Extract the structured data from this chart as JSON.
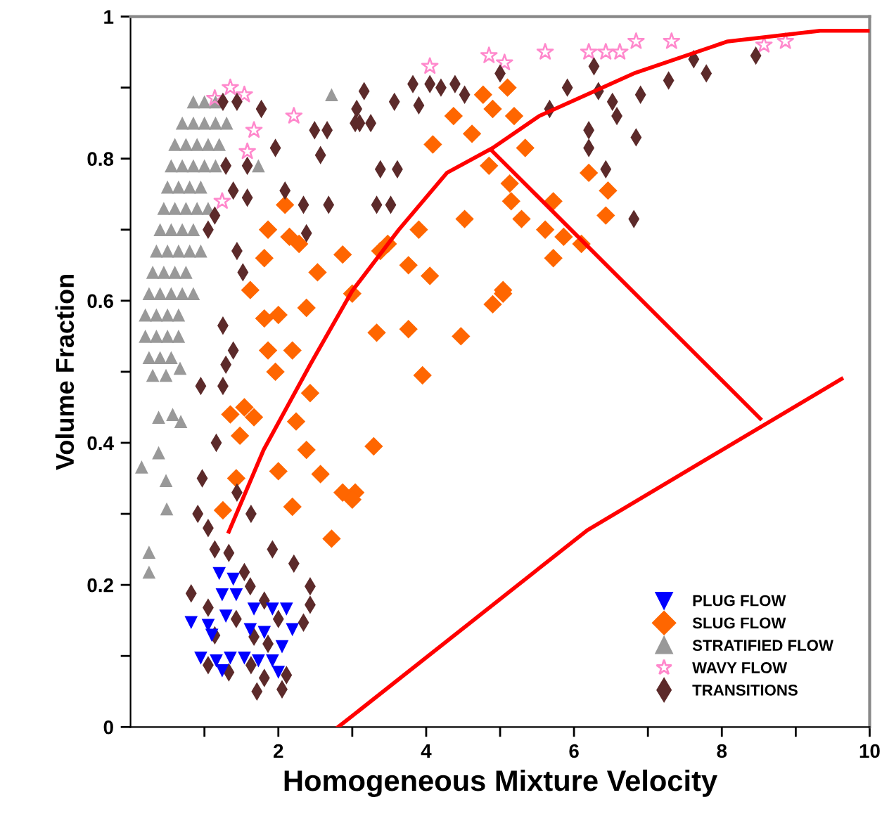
{
  "chart_data": {
    "type": "scatter",
    "xlabel": "Homogeneous Mixture Velocity",
    "ylabel": "Volume Fraction",
    "xlim": [
      0,
      10
    ],
    "ylim": [
      0,
      1
    ],
    "xticks": [
      {
        "value": 1,
        "label": null
      },
      2,
      {
        "value": 3,
        "label": null
      },
      4,
      {
        "value": 5,
        "label": null
      },
      6,
      {
        "value": 7,
        "label": null
      },
      8,
      {
        "value": 9,
        "label": null
      },
      10
    ],
    "yticks": [
      0,
      {
        "value": 0.1,
        "label": null
      },
      0.2,
      {
        "value": 0.3,
        "label": null
      },
      0.4,
      {
        "value": 0.5,
        "label": null
      },
      0.6,
      {
        "value": 0.7,
        "label": null
      },
      0.8,
      {
        "value": 0.9,
        "label": null
      },
      1
    ],
    "legend": "bottom right",
    "series": [
      {
        "name": "PLUG FLOW",
        "marker": "triangle_down",
        "color": "#0000ff",
        "x": [
          1.2,
          1.39,
          1.24,
          1.43,
          0.82,
          1.05,
          1.29,
          1.67,
          1.92,
          2.11,
          1.62,
          1.81,
          2.19,
          0.95,
          1.16,
          1.35,
          1.54,
          1.73,
          1.92,
          2.05,
          1.1,
          2.0,
          1.24
        ],
        "values": [
          0.216,
          0.208,
          0.186,
          0.186,
          0.147,
          0.143,
          0.156,
          0.166,
          0.166,
          0.166,
          0.137,
          0.133,
          0.137,
          0.097,
          0.093,
          0.097,
          0.097,
          0.093,
          0.093,
          0.113,
          0.129,
          0.077,
          0.079
        ]
      },
      {
        "name": "SLUG FLOW",
        "marker": "diamond",
        "color": "#ff6600",
        "x": [
          4.37,
          4.09,
          4.62,
          4.77,
          5.1,
          4.9,
          5.19,
          5.34,
          4.85,
          5.13,
          5.15,
          5.29,
          5.72,
          5.61,
          5.86,
          6.1,
          5.72,
          6.2,
          6.46,
          6.43,
          4.52,
          3.9,
          3.76,
          4.05,
          3.48,
          3.38,
          5.04,
          3.33,
          3.76,
          4.47,
          4.9,
          5.04,
          3.95,
          3.29,
          3.04,
          2.09,
          1.86,
          2.15,
          2.28,
          2.87,
          1.81,
          2.53,
          1.62,
          2.38,
          1.81,
          2.0,
          1.86,
          2.19,
          3.0,
          1.35,
          1.54,
          1.48,
          1.67,
          2.43,
          2.24,
          2.38,
          2.0,
          2.57,
          1.43,
          2.19,
          2.87,
          3.0,
          1.25,
          2.72,
          1.96
        ],
        "values": [
          0.86,
          0.82,
          0.835,
          0.89,
          0.9,
          0.87,
          0.86,
          0.815,
          0.79,
          0.765,
          0.74,
          0.715,
          0.74,
          0.7,
          0.69,
          0.68,
          0.66,
          0.78,
          0.755,
          0.72,
          0.715,
          0.7,
          0.65,
          0.635,
          0.68,
          0.67,
          0.615,
          0.555,
          0.56,
          0.55,
          0.595,
          0.61,
          0.495,
          0.395,
          0.33,
          0.735,
          0.7,
          0.69,
          0.68,
          0.665,
          0.66,
          0.64,
          0.615,
          0.59,
          0.575,
          0.58,
          0.53,
          0.53,
          0.61,
          0.44,
          0.45,
          0.41,
          0.436,
          0.47,
          0.43,
          0.39,
          0.36,
          0.356,
          0.35,
          0.31,
          0.33,
          0.32,
          0.305,
          0.265,
          0.5
        ]
      },
      {
        "name": "STRATIFIED FLOW",
        "marker": "triangle",
        "color": "#999999",
        "x": [
          0.85,
          1.0,
          1.15,
          0.7,
          0.85,
          1.0,
          1.15,
          1.3,
          0.6,
          0.75,
          0.9,
          1.05,
          1.2,
          0.55,
          0.7,
          0.85,
          1.0,
          1.15,
          0.5,
          0.65,
          0.8,
          0.95,
          0.45,
          0.6,
          0.75,
          0.9,
          1.05,
          0.4,
          0.55,
          0.7,
          0.85,
          0.35,
          0.5,
          0.65,
          0.8,
          0.95,
          0.3,
          0.45,
          0.6,
          0.75,
          0.25,
          0.4,
          0.55,
          0.7,
          0.85,
          0.2,
          0.35,
          0.5,
          0.65,
          0.2,
          0.35,
          0.5,
          0.65,
          0.25,
          0.4,
          0.55,
          2.72,
          1.73,
          0.3,
          0.48,
          0.67,
          0.38,
          0.57,
          0.68,
          0.38,
          0.15,
          0.48,
          0.49,
          0.25,
          0.25
        ],
        "values": [
          0.88,
          0.88,
          0.88,
          0.85,
          0.85,
          0.85,
          0.85,
          0.85,
          0.82,
          0.82,
          0.82,
          0.82,
          0.82,
          0.79,
          0.79,
          0.79,
          0.79,
          0.79,
          0.76,
          0.76,
          0.76,
          0.76,
          0.73,
          0.73,
          0.73,
          0.73,
          0.73,
          0.7,
          0.7,
          0.7,
          0.7,
          0.67,
          0.67,
          0.67,
          0.67,
          0.67,
          0.64,
          0.64,
          0.64,
          0.64,
          0.61,
          0.61,
          0.61,
          0.61,
          0.61,
          0.58,
          0.58,
          0.58,
          0.58,
          0.55,
          0.55,
          0.55,
          0.55,
          0.52,
          0.52,
          0.52,
          0.89,
          0.79,
          0.495,
          0.495,
          0.505,
          0.436,
          0.44,
          0.43,
          0.386,
          0.366,
          0.347,
          0.307,
          0.246,
          0.218
        ]
      },
      {
        "name": "WAVY FLOW",
        "marker": "star",
        "color": "#ff88cc",
        "x": [
          1.14,
          1.35,
          1.54,
          2.21,
          1.67,
          1.58,
          1.24,
          4.05,
          4.85,
          5.06,
          5.61,
          6.2,
          6.43,
          6.62,
          6.84,
          7.32,
          8.57,
          8.86
        ],
        "values": [
          0.885,
          0.9,
          0.89,
          0.86,
          0.84,
          0.81,
          0.74,
          0.93,
          0.945,
          0.935,
          0.95,
          0.95,
          0.95,
          0.95,
          0.965,
          0.965,
          0.96,
          0.965
        ]
      },
      {
        "name": "TRANSITIONS",
        "marker": "diamond",
        "color": "#5c2a2a",
        "x": [
          1.25,
          1.44,
          1.77,
          1.96,
          1.29,
          1.58,
          1.39,
          1.58,
          1.14,
          1.05,
          2.34,
          2.68,
          2.38,
          2.09,
          1.44,
          1.52,
          2.49,
          2.66,
          2.57,
          3.06,
          3.1,
          1.25,
          1.39,
          3.16,
          3.04,
          3.25,
          3.57,
          3.82,
          3.9,
          4.05,
          4.2,
          4.39,
          4.52,
          5.0,
          3.38,
          3.61,
          3.33,
          3.52,
          5.67,
          5.91,
          6.27,
          6.33,
          6.52,
          6.58,
          6.9,
          6.2,
          6.2,
          6.84,
          6.43,
          6.81,
          7.28,
          7.62,
          7.79,
          8.46,
          0.95,
          1.25,
          1.29,
          1.16,
          0.97,
          0.91,
          1.05,
          1.44,
          1.63,
          1.14,
          1.33,
          1.92,
          2.21,
          1.54,
          1.62,
          0.82,
          2.43,
          2.43,
          1.81,
          1.05,
          1.43,
          2.0,
          2.34,
          1.14,
          1.67,
          1.86,
          1.05,
          1.33,
          1.63,
          1.81,
          1.71,
          2.05,
          2.11
        ],
        "values": [
          0.88,
          0.88,
          0.87,
          0.815,
          0.79,
          0.79,
          0.755,
          0.745,
          0.72,
          0.7,
          0.735,
          0.735,
          0.695,
          0.755,
          0.67,
          0.64,
          0.84,
          0.84,
          0.805,
          0.87,
          0.85,
          0.565,
          0.53,
          0.895,
          0.85,
          0.85,
          0.88,
          0.905,
          0.875,
          0.905,
          0.9,
          0.905,
          0.89,
          0.92,
          0.785,
          0.785,
          0.735,
          0.735,
          0.87,
          0.9,
          0.93,
          0.895,
          0.88,
          0.86,
          0.89,
          0.84,
          0.815,
          0.83,
          0.785,
          0.715,
          0.91,
          0.94,
          0.92,
          0.945,
          0.48,
          0.48,
          0.51,
          0.4,
          0.35,
          0.3,
          0.28,
          0.33,
          0.3,
          0.25,
          0.245,
          0.25,
          0.23,
          0.218,
          0.198,
          0.188,
          0.198,
          0.172,
          0.178,
          0.168,
          0.152,
          0.152,
          0.147,
          0.129,
          0.127,
          0.117,
          0.087,
          0.077,
          0.087,
          0.069,
          0.05,
          0.053,
          0.073
        ]
      },
      {
        "type": "line",
        "line_style": "solid",
        "color": "#ff0000",
        "x": [
          1.33,
          1.8,
          2.43,
          3.0,
          3.63,
          4.28,
          4.9,
          5.53,
          6.81,
          8.08,
          9.33,
          10
        ],
        "values": [
          0.275,
          0.39,
          0.51,
          0.614,
          0.7,
          0.78,
          0.815,
          0.86,
          0.92,
          0.965,
          0.98,
          0.98
        ]
      },
      {
        "type": "line",
        "line_style": "solid",
        "color": "#ff0000",
        "x": [
          4.9,
          8.52
        ],
        "values": [
          0.81,
          0.434
        ]
      },
      {
        "type": "line",
        "line_style": "solid",
        "color": "#ff0000",
        "x": [
          2.81,
          6.18,
          9.62
        ],
        "values": [
          0,
          0.277,
          0.49
        ]
      }
    ]
  }
}
